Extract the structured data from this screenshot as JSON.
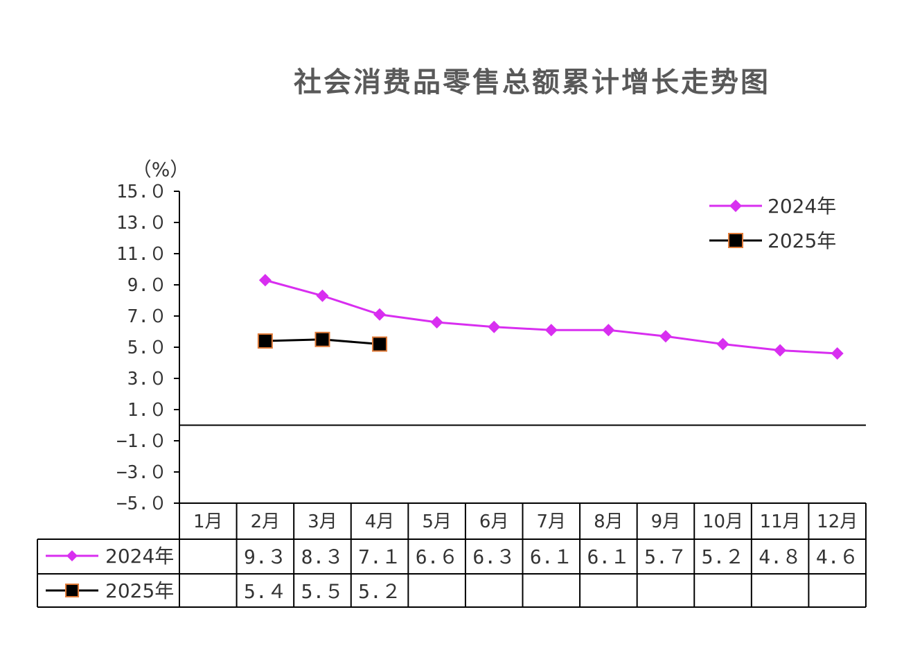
{
  "chart_data": {
    "type": "line",
    "title": "社会消费品零售总额累计增长走势图",
    "ylabel": "（%）",
    "ylim": [
      -5.0,
      15.0
    ],
    "yticks": [
      "15.０",
      "13.０",
      "11.０",
      "9.０",
      "7.０",
      "5.０",
      "3.０",
      "1.０",
      "−1.０",
      "−3.０",
      "−5.０"
    ],
    "categories": [
      "1月",
      "2月",
      "3月",
      "4月",
      "5月",
      "6月",
      "7月",
      "8月",
      "9月",
      "10月",
      "11月",
      "12月"
    ],
    "legend_position": "top-right",
    "series": [
      {
        "name": "2024年",
        "color": "#d82ef0",
        "marker": "diamond",
        "values": [
          null,
          9.3,
          8.3,
          7.1,
          6.6,
          6.3,
          6.1,
          6.1,
          5.7,
          5.2,
          4.8,
          4.6
        ],
        "labels": [
          "",
          "9.３",
          "8.３",
          "7.１",
          "6.６",
          "6.３",
          "6.１",
          "6.１",
          "5.７",
          "5.２",
          "4.８",
          "4.６"
        ]
      },
      {
        "name": "2025年",
        "color": "#000000",
        "marker": "square",
        "marker_edge": "#e07b39",
        "values": [
          null,
          5.4,
          5.5,
          5.2,
          null,
          null,
          null,
          null,
          null,
          null,
          null,
          null
        ],
        "labels": [
          "",
          "5.４",
          "5.５",
          "5.２",
          "",
          "",
          "",
          "",
          "",
          "",
          "",
          ""
        ]
      }
    ]
  }
}
